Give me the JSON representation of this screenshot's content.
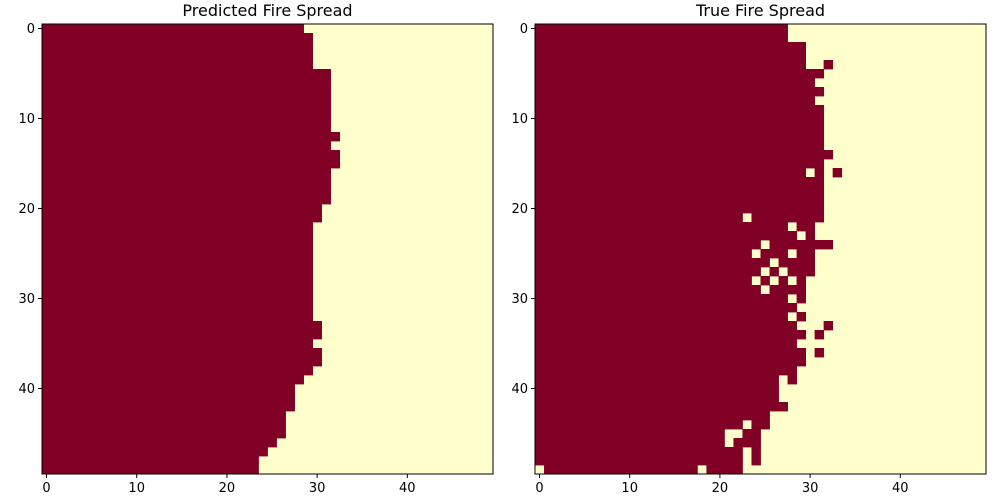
{
  "colors": {
    "burned": "#800026",
    "unburned": "#ffffcc",
    "axis": "#000000"
  },
  "chart_data": [
    {
      "type": "heatmap",
      "title": "Predicted Fire Spread",
      "grid_size": 50,
      "encoding": "value 1 = burned (dark red), 0 = unburned (pale yellow)",
      "xticks": [
        "0",
        "10",
        "20",
        "30",
        "40"
      ],
      "yticks": [
        "0",
        "10",
        "20",
        "30",
        "40"
      ],
      "row_front": [
        29,
        30,
        30,
        30,
        30,
        32,
        32,
        32,
        32,
        32,
        32,
        32,
        32,
        32,
        32,
        32,
        32,
        32,
        32,
        32,
        31,
        31,
        30,
        30,
        30,
        30,
        30,
        30,
        30,
        30,
        30,
        30,
        30,
        31,
        31,
        30,
        31,
        31,
        30,
        29,
        28,
        28,
        28,
        27,
        27,
        27,
        26,
        25,
        24,
        24
      ],
      "extra_burned": [
        [
          12,
          32
        ],
        [
          14,
          32
        ],
        [
          15,
          32
        ]
      ]
    },
    {
      "type": "heatmap",
      "title": "True Fire Spread",
      "grid_size": 50,
      "encoding": "value 1 = burned (dark red), 0 = unburned (pale yellow)",
      "xticks": [
        "0",
        "10",
        "20",
        "30",
        "40"
      ],
      "yticks": [
        "0",
        "10",
        "20",
        "30",
        "40"
      ],
      "row_front": [
        28,
        29,
        30,
        30,
        30,
        32,
        32,
        32,
        32,
        32,
        32,
        32,
        32,
        32,
        32,
        32,
        32,
        32,
        32,
        32,
        32,
        32,
        31,
        31,
        31,
        31,
        31,
        31,
        30,
        30,
        30,
        29,
        30,
        30,
        30,
        30,
        30,
        30,
        29,
        29,
        28,
        28,
        28,
        26,
        26,
        25,
        25,
        25,
        25,
        24
      ],
      "extra_burned": [
        [
          4,
          32
        ],
        [
          14,
          32
        ],
        [
          16,
          33
        ],
        [
          24,
          31
        ],
        [
          24,
          32
        ],
        [
          33,
          32
        ],
        [
          34,
          31
        ],
        [
          36,
          31
        ]
      ],
      "extra_unburned": [
        [
          0,
          28
        ],
        [
          1,
          28
        ],
        [
          1,
          29
        ],
        [
          6,
          31
        ],
        [
          8,
          31
        ],
        [
          16,
          30
        ],
        [
          21,
          23
        ],
        [
          22,
          28
        ],
        [
          23,
          29
        ],
        [
          24,
          25
        ],
        [
          25,
          24
        ],
        [
          25,
          28
        ],
        [
          26,
          26
        ],
        [
          27,
          25
        ],
        [
          27,
          27
        ],
        [
          28,
          24
        ],
        [
          28,
          26
        ],
        [
          28,
          28
        ],
        [
          29,
          25
        ],
        [
          30,
          28
        ],
        [
          32,
          28
        ],
        [
          33,
          29
        ],
        [
          35,
          29
        ],
        [
          36,
          30
        ],
        [
          39,
          27
        ],
        [
          40,
          27
        ],
        [
          40,
          29
        ],
        [
          41,
          27
        ],
        [
          42,
          28
        ],
        [
          44,
          23
        ],
        [
          45,
          21
        ],
        [
          45,
          22
        ],
        [
          46,
          21
        ],
        [
          47,
          23
        ],
        [
          48,
          23
        ],
        [
          49,
          0
        ],
        [
          49,
          18
        ],
        [
          49,
          23
        ]
      ]
    }
  ]
}
